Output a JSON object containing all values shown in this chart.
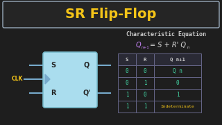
{
  "bg_color": "#1e1e1e",
  "title": "SR Flip-Flop",
  "title_color": "#f5c518",
  "title_box_color": "#252525",
  "title_box_edge": "#99aabb",
  "char_eq_label": "Characteristic Equation",
  "char_eq_label_color": "#cccccc",
  "eq_color_Q": "#cc88ff",
  "eq_color_rest": "#dddddd",
  "eq_color_Qn": "#cc88ff",
  "flip_flop_box_color": "#aaddee",
  "flip_flop_box_edge": "#77bbcc",
  "wire_color": "#77aacc",
  "clk_label_color": "#f5c518",
  "label_color_dark": "#222222",
  "table_header_color": "#cccccc",
  "table_data_color": "#44ddaa",
  "table_indeterminate_color": "#f5c518",
  "table_edge_color": "#666688",
  "table_header_bg": "#2a2a35",
  "table_data_bg": "#1e1e1e",
  "table_headers": [
    "S",
    "R",
    "Q n+1"
  ],
  "table_rows": [
    [
      "0",
      "0",
      "Q n"
    ],
    [
      "0",
      "1",
      "0"
    ],
    [
      "1",
      "0",
      "1"
    ],
    [
      "1",
      "1",
      "Indeterminate"
    ]
  ],
  "S_label": "S",
  "R_label": "R",
  "Q_label": "Q",
  "Qprime_label": "Q'",
  "CLK_label": "CLK"
}
